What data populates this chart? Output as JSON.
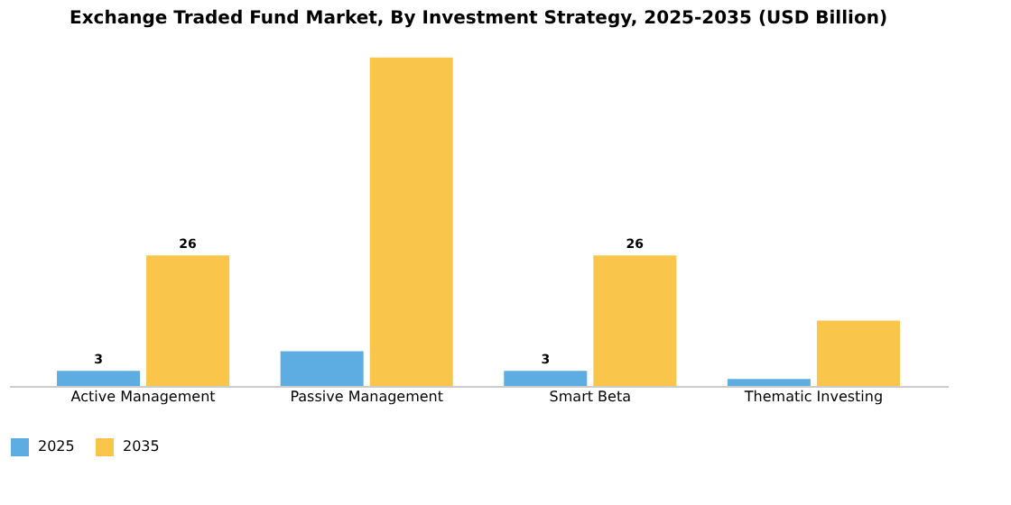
{
  "chart_data": {
    "type": "bar",
    "title": "Exchange Traded Fund Market, By Investment Strategy, 2025-2035 (USD Billion)",
    "categories": [
      "Active Management",
      "Passive Management",
      "Smart Beta",
      "Thematic Investing"
    ],
    "series": [
      {
        "name": "2025",
        "color": "#5dade2",
        "values": [
          3,
          6.9,
          3,
          1.4
        ],
        "value_labels": [
          "3",
          null,
          "3",
          null
        ]
      },
      {
        "name": "2035",
        "color": "#f9c54a",
        "values": [
          26,
          65.4,
          26,
          13
        ],
        "value_labels": [
          "26",
          null,
          "26",
          null
        ]
      }
    ],
    "legend": "bottom",
    "grid": false
  }
}
